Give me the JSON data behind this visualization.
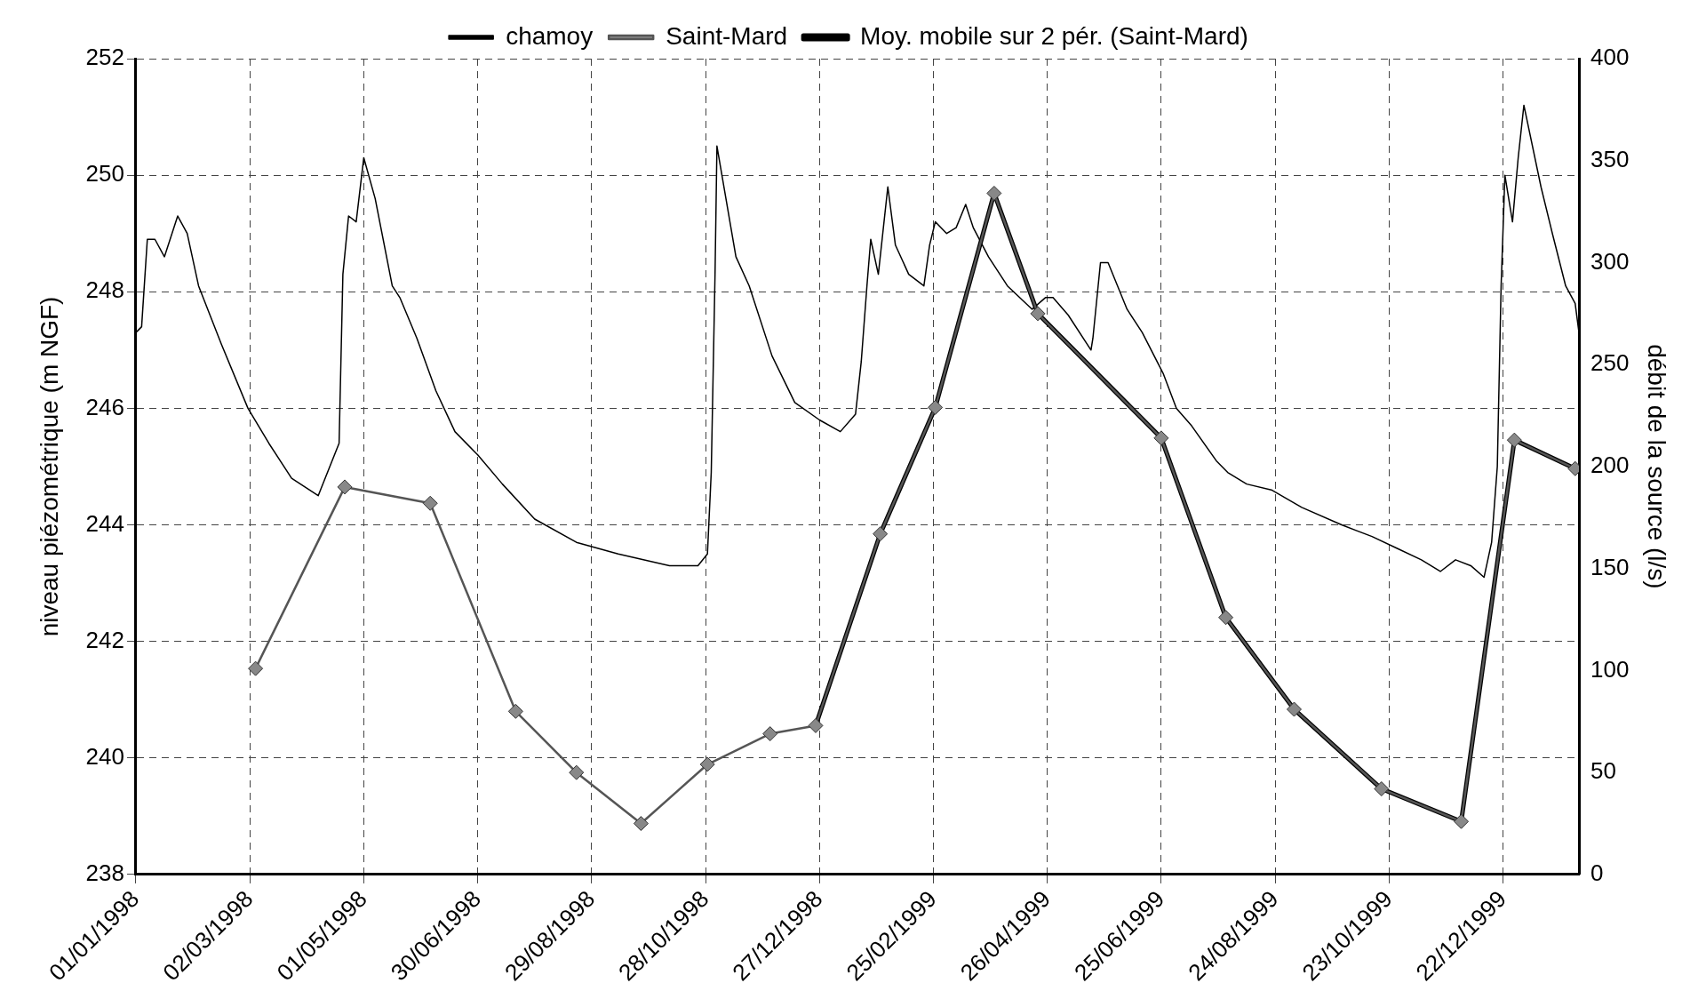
{
  "chart_data": {
    "type": "line",
    "ylabel": "niveau piézométrique (m NGF)",
    "y2label": "débit de la source (l/s)",
    "xlim": [
      "1998-01-01",
      "2000-01-31"
    ],
    "xticks": [
      {
        "value": "1998-01-01",
        "label": "01/01/1998"
      },
      {
        "value": "1998-03-02",
        "label": "02/03/1998"
      },
      {
        "value": "1998-05-01",
        "label": "01/05/1998"
      },
      {
        "value": "1998-06-30",
        "label": "30/06/1998"
      },
      {
        "value": "1998-08-29",
        "label": "29/08/1998"
      },
      {
        "value": "1998-10-28",
        "label": "28/10/1998"
      },
      {
        "value": "1998-12-27",
        "label": "27/12/1998"
      },
      {
        "value": "1999-02-25",
        "label": "25/02/1999"
      },
      {
        "value": "1999-04-26",
        "label": "26/04/1999"
      },
      {
        "value": "1999-06-25",
        "label": "25/06/1999"
      },
      {
        "value": "1999-08-24",
        "label": "24/08/1999"
      },
      {
        "value": "1999-10-23",
        "label": "23/10/1999"
      },
      {
        "value": "1999-12-22",
        "label": "22/12/1999"
      }
    ],
    "ylim": [
      238,
      252
    ],
    "yticks": [
      238,
      240,
      242,
      244,
      246,
      248,
      250,
      252
    ],
    "y2lim": [
      0,
      400
    ],
    "y2ticks": [
      0,
      50,
      100,
      150,
      200,
      250,
      300,
      350,
      400
    ],
    "grid": true,
    "legend": "top",
    "line_style": "solid",
    "series": [
      {
        "name": "chamoy",
        "axis": "y",
        "color": "#000000",
        "marker": "none",
        "x": [
          "1998-01-01",
          "1998-01-04",
          "1998-01-07",
          "1998-01-11",
          "1998-01-16",
          "1998-01-19",
          "1998-01-23",
          "1998-01-28",
          "1998-02-03",
          "1998-02-15",
          "1998-03-01",
          "1998-03-12",
          "1998-03-24",
          "1998-04-07",
          "1998-04-18",
          "1998-04-20",
          "1998-04-23",
          "1998-04-27",
          "1998-05-01",
          "1998-05-07",
          "1998-05-16",
          "1998-05-20",
          "1998-05-29",
          "1998-06-08",
          "1998-06-18",
          "1998-06-30",
          "1998-07-13",
          "1998-07-30",
          "1998-08-21",
          "1998-09-12",
          "1998-10-09",
          "1998-10-24",
          "1998-10-29",
          "1998-10-31",
          "1998-11-02",
          "1998-11-03",
          "1998-11-13",
          "1998-11-20",
          "1998-12-02",
          "1998-12-14",
          "1998-12-27",
          "1999-01-07",
          "1999-01-15",
          "1999-01-18",
          "1999-01-21",
          "1999-01-23",
          "1999-01-27",
          "1999-02-01",
          "1999-02-05",
          "1999-02-12",
          "1999-02-20",
          "1999-02-23",
          "1999-02-26",
          "1999-03-04",
          "1999-03-09",
          "1999-03-14",
          "1999-03-18",
          "1999-03-26",
          "1999-04-05",
          "1999-04-18",
          "1999-04-25",
          "1999-04-29",
          "1999-05-07",
          "1999-05-19",
          "1999-05-20",
          "1999-05-24",
          "1999-05-28",
          "1999-06-07",
          "1999-06-15",
          "1999-06-26",
          "1999-07-03",
          "1999-07-11",
          "1999-07-24",
          "1999-07-30",
          "1999-08-09",
          "1999-08-22",
          "1999-09-07",
          "1999-09-28",
          "1999-10-14",
          "1999-10-27",
          "1999-11-09",
          "1999-11-19",
          "1999-11-27",
          "1999-12-05",
          "1999-12-12",
          "1999-12-16",
          "1999-12-19",
          "1999-12-21",
          "1999-12-23",
          "1999-12-27",
          "1999-12-30",
          "2000-01-02",
          "2000-01-11",
          "2000-01-17",
          "2000-01-24",
          "2000-01-29",
          "2000-01-31"
        ],
        "values": [
          247.3,
          247.4,
          248.9,
          248.9,
          248.6,
          248.9,
          249.3,
          249.0,
          248.1,
          247.1,
          246.0,
          245.4,
          244.8,
          244.5,
          245.4,
          248.3,
          249.3,
          249.2,
          250.3,
          249.6,
          248.1,
          247.9,
          247.2,
          246.3,
          245.6,
          245.2,
          244.7,
          244.1,
          243.7,
          243.5,
          243.3,
          243.3,
          243.5,
          244.9,
          248.3,
          250.5,
          248.6,
          248.1,
          246.9,
          246.1,
          245.8,
          245.6,
          245.9,
          246.8,
          248.1,
          248.9,
          248.3,
          249.8,
          248.8,
          248.3,
          248.1,
          248.8,
          249.2,
          249.0,
          249.1,
          249.5,
          249.1,
          248.6,
          248.1,
          247.7,
          247.9,
          247.9,
          247.6,
          247.0,
          247.2,
          248.5,
          248.5,
          247.7,
          247.3,
          246.6,
          246.0,
          245.7,
          245.1,
          244.9,
          244.7,
          244.6,
          244.3,
          244.0,
          243.8,
          243.6,
          243.4,
          243.2,
          243.4,
          243.3,
          243.1,
          243.7,
          245.0,
          248.1,
          250.0,
          249.2,
          250.3,
          251.2,
          249.8,
          249.0,
          248.1,
          247.8,
          247.3
        ]
      },
      {
        "name": "Saint-Mard",
        "axis": "y2",
        "color": "#555555",
        "marker": "diamond",
        "x": [
          "1998-03-05",
          "1998-04-21",
          "1998-06-05",
          "1998-07-20",
          "1998-08-21",
          "1998-09-24",
          "1998-10-29",
          "1998-12-01",
          "1998-12-25",
          "1999-01-28",
          "1999-02-26",
          "1999-03-29",
          "1999-04-21",
          "1999-06-25",
          "1999-07-29",
          "1999-09-03",
          "1999-10-19",
          "1999-11-30",
          "1999-12-28",
          "2000-01-29"
        ],
        "values": [
          101,
          190,
          182,
          80,
          50,
          25,
          54,
          69,
          73,
          167,
          229,
          334,
          275,
          214,
          126,
          81,
          42,
          26,
          213,
          199
        ]
      },
      {
        "name": "Moy. mobile sur 2 pér. (Saint-Mard)",
        "axis": "y2",
        "color": "#000000",
        "marker": "none",
        "x": [
          "1998-12-25",
          "1999-01-28",
          "1999-02-26",
          "1999-03-29",
          "1999-04-21",
          "1999-06-25",
          "1999-07-29",
          "1999-09-03",
          "1999-10-19",
          "1999-11-30",
          "1999-12-28",
          "2000-01-29"
        ],
        "values": [
          73,
          167,
          229,
          334,
          275,
          214,
          126,
          81,
          42,
          26,
          213,
          199
        ]
      }
    ]
  }
}
